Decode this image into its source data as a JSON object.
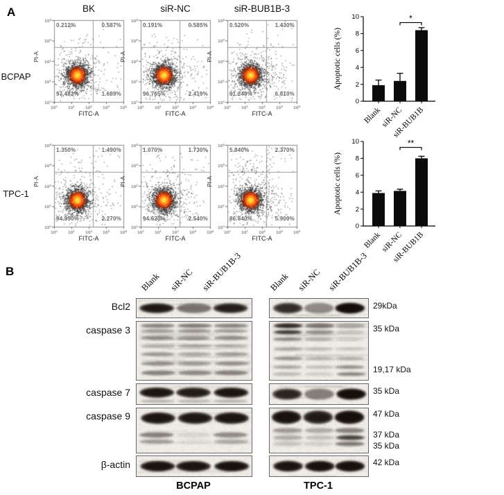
{
  "figure": {
    "panelA_label": "A",
    "panelB_label": "B"
  },
  "panelA": {
    "col_headers": [
      "BK",
      "siR-NC",
      "siR-BUB1B-3"
    ],
    "xlabel": "FITC-A",
    "ylabel": "PI-A",
    "ticks": [
      "10⁰",
      "10¹",
      "10²",
      "10³",
      "10⁴"
    ],
    "rows": [
      {
        "cell_line": "BCPAP",
        "plots": [
          {
            "ul": "0.212%",
            "ur": "0.587%",
            "ll": "97.482%",
            "lr": "1.689%"
          },
          {
            "ul": "0.191%",
            "ur": "0.585%",
            "ll": "96.765%",
            "lr": "2.419%"
          },
          {
            "ul": "0.520%",
            "ur": "1.430%",
            "ll": "91.240%",
            "lr": "6.810%"
          }
        ]
      },
      {
        "cell_line": "TPC-1",
        "plots": [
          {
            "ul": "1.350%",
            "ur": "1.490%",
            "ll": "94.850%",
            "lr": "2.270%"
          },
          {
            "ul": "1.070%",
            "ur": "1.730%",
            "ll": "94.620%",
            "lr": "2.540%"
          },
          {
            "ul": "5.040%",
            "ur": "2.370%",
            "ll": "86.640%",
            "lr": "5.900%"
          }
        ]
      }
    ]
  },
  "chart_data": [
    {
      "type": "bar",
      "title": "",
      "categories": [
        "Blank",
        "siR-NC",
        "siR-BUB1B"
      ],
      "values": [
        1.9,
        2.4,
        8.4
      ],
      "errors": [
        0.6,
        0.9,
        0.3
      ],
      "xlabel": "",
      "ylabel": "Apoptotic cells (%)",
      "ylim": [
        0,
        10
      ],
      "yticks": [
        0,
        2,
        4,
        6,
        8,
        10
      ],
      "grid": false,
      "legend": "none",
      "bar_color": "#0b0b0b",
      "significance": {
        "from": 1,
        "to": 2,
        "label": "*"
      }
    },
    {
      "type": "bar",
      "title": "",
      "categories": [
        "Blank",
        "siR-NC",
        "siR-BUB1B"
      ],
      "values": [
        3.9,
        4.15,
        8.0
      ],
      "errors": [
        0.25,
        0.2,
        0.25
      ],
      "xlabel": "",
      "ylabel": "Apoptotic cells (%)",
      "ylim": [
        0,
        10
      ],
      "yticks": [
        0,
        2,
        4,
        6,
        8,
        10
      ],
      "grid": false,
      "legend": "none",
      "bar_color": "#0b0b0b",
      "significance": {
        "from": 1,
        "to": 2,
        "label": "**"
      }
    }
  ],
  "panelB": {
    "lane_labels": [
      "Blank",
      "siR-NC",
      "siR-BUB1B-3"
    ],
    "proteins": [
      "Bcl2",
      "caspase 3",
      "caspase 7",
      "caspase 9",
      "β-actin"
    ],
    "kda_labels": [
      "29kDa",
      "35 kDa",
      "19,17 kDa",
      "35 kDa",
      "47 kDa",
      "37 kDa",
      "35 kDa",
      "42 kDa"
    ],
    "groups": [
      "BCPAP",
      "TPC-1"
    ]
  }
}
